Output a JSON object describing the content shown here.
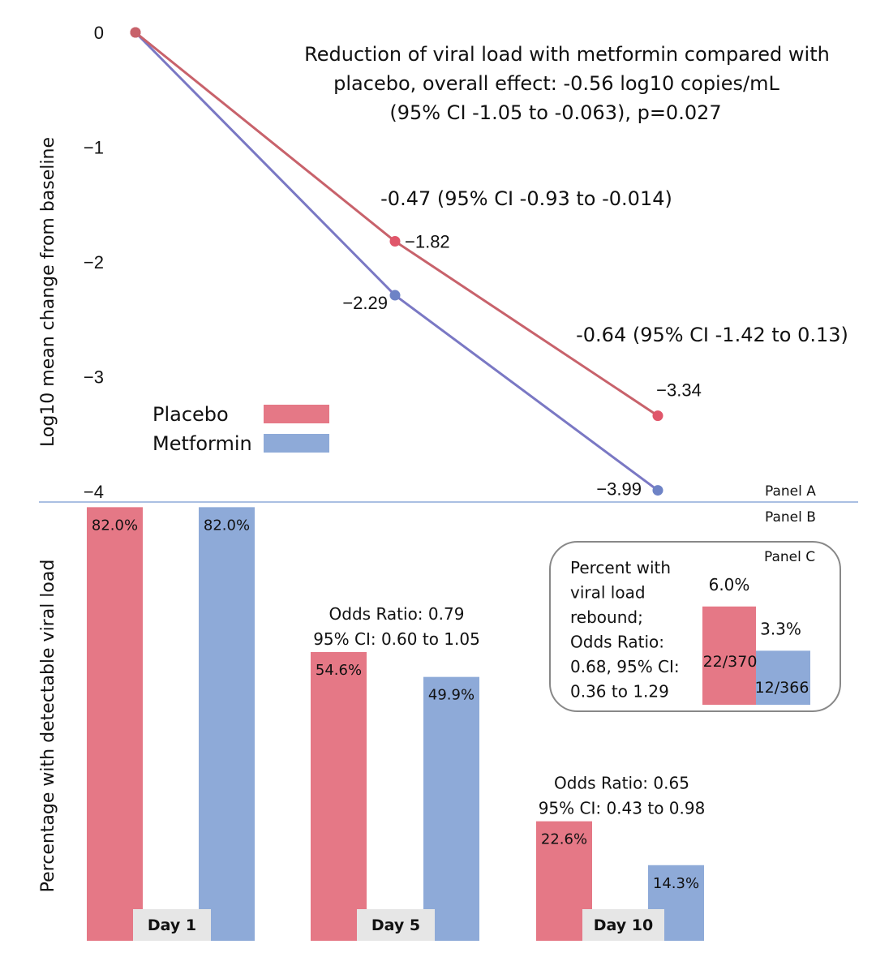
{
  "colors": {
    "placebo_line": "#c8626b",
    "placebo_point": "#e0566a",
    "metformin_line": "#7a78c4",
    "metformin_point": "#6e83c6",
    "placebo_bar": "#e57886",
    "metformin_bar": "#8eaad8",
    "separator": "#8eaad8",
    "day_box": "#e6e6e6",
    "box_border": "#888888"
  },
  "chart_data": [
    {
      "panel": "Panel A",
      "type": "line",
      "ylabel": "Log10 mean change from baseline",
      "ylim": [
        -4,
        0
      ],
      "yticks": [
        0,
        -1,
        -2,
        -3,
        -4
      ],
      "ytick_labels": [
        "0",
        "−1",
        "−2",
        "−3",
        "−4"
      ],
      "x": [
        "Day 1",
        "Day 5",
        "Day 10"
      ],
      "series": [
        {
          "name": "Placebo",
          "values": [
            0,
            -1.82,
            -3.34
          ],
          "point_labels": [
            "",
            "−1.82",
            "−3.34"
          ]
        },
        {
          "name": "Metformin",
          "values": [
            0,
            -2.29,
            -3.99
          ],
          "point_labels": [
            "",
            "−2.29",
            "−3.99"
          ]
        }
      ],
      "legend": {
        "position": "bottom-left",
        "entries": [
          "Placebo",
          "Metformin"
        ]
      },
      "annotations": {
        "overall": [
          "Reduction of viral load with metformin compared with",
          "placebo, overall effect: -0.56 log10 copies/mL",
          "(95% CI -1.05 to -0.063), p=0.027"
        ],
        "day5": "-0.47 (95% CI -0.93 to -0.014)",
        "day10": "-0.64 (95% CI -1.42 to 0.13)"
      }
    },
    {
      "panel": "Panel B",
      "type": "bar",
      "ylabel": "Percentage with detectable viral load",
      "ylim": [
        0,
        100
      ],
      "categories": [
        "Day 1",
        "Day 5",
        "Day 10"
      ],
      "series": [
        {
          "name": "Placebo",
          "values": [
            82.0,
            54.6,
            22.6
          ],
          "labels": [
            "82.0%",
            "54.6%",
            "22.6%"
          ]
        },
        {
          "name": "Metformin",
          "values": [
            82.0,
            49.9,
            14.3
          ],
          "labels": [
            "82.0%",
            "49.9%",
            "14.3%"
          ]
        }
      ],
      "annotations": [
        null,
        [
          "Odds Ratio: 0.79",
          "95% CI: 0.60 to 1.05"
        ],
        [
          "Odds Ratio: 0.65",
          "95% CI: 0.43 to 0.98"
        ]
      ]
    },
    {
      "panel": "Panel C",
      "type": "bar",
      "title_lines": [
        "Percent with",
        "viral load",
        "rebound;",
        "Odds Ratio:",
        "0.68, 95% CI:",
        "0.36 to 1.29"
      ],
      "categories": [
        "Placebo",
        "Metformin"
      ],
      "values": [
        6.0,
        3.3
      ],
      "labels": [
        "6.0%",
        "3.3%"
      ],
      "counts": [
        "22/370",
        "12/366"
      ]
    }
  ],
  "panel_labels": {
    "a": "Panel A",
    "b": "Panel B",
    "c": "Panel C"
  }
}
